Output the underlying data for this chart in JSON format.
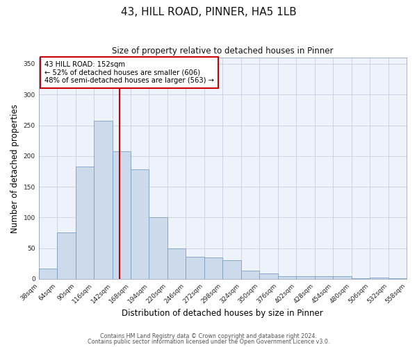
{
  "title": "43, HILL ROAD, PINNER, HA5 1LB",
  "subtitle": "Size of property relative to detached houses in Pinner",
  "xlabel": "Distribution of detached houses by size in Pinner",
  "ylabel": "Number of detached properties",
  "bar_color": "#cddaeb",
  "bar_edge_color": "#7aa0c4",
  "background_color": "#eef2fa",
  "grid_color": "#c0c8d8",
  "vline_x": 152,
  "vline_color": "#cc0000",
  "annotation_line1": "43 HILL ROAD: 152sqm",
  "annotation_line2": "← 52% of detached houses are smaller (606)",
  "annotation_line3": "48% of semi-detached houses are larger (563) →",
  "bin_edges": [
    38,
    64,
    90,
    116,
    142,
    168,
    194,
    220,
    246,
    272,
    298,
    324,
    350,
    376,
    402,
    428,
    454,
    480,
    506,
    532,
    558
  ],
  "bin_labels": [
    "38sqm",
    "64sqm",
    "90sqm",
    "116sqm",
    "142sqm",
    "168sqm",
    "194sqm",
    "220sqm",
    "246sqm",
    "272sqm",
    "298sqm",
    "324sqm",
    "350sqm",
    "376sqm",
    "402sqm",
    "428sqm",
    "454sqm",
    "480sqm",
    "506sqm",
    "532sqm",
    "558sqm"
  ],
  "counts": [
    17,
    76,
    183,
    257,
    208,
    178,
    100,
    50,
    36,
    35,
    30,
    13,
    9,
    5,
    4,
    5,
    4,
    1,
    2,
    1
  ],
  "ylim": [
    0,
    360
  ],
  "yticks": [
    0,
    50,
    100,
    150,
    200,
    250,
    300,
    350
  ],
  "footer1": "Contains HM Land Registry data © Crown copyright and database right 2024.",
  "footer2": "Contains public sector information licensed under the Open Government Licence v3.0."
}
